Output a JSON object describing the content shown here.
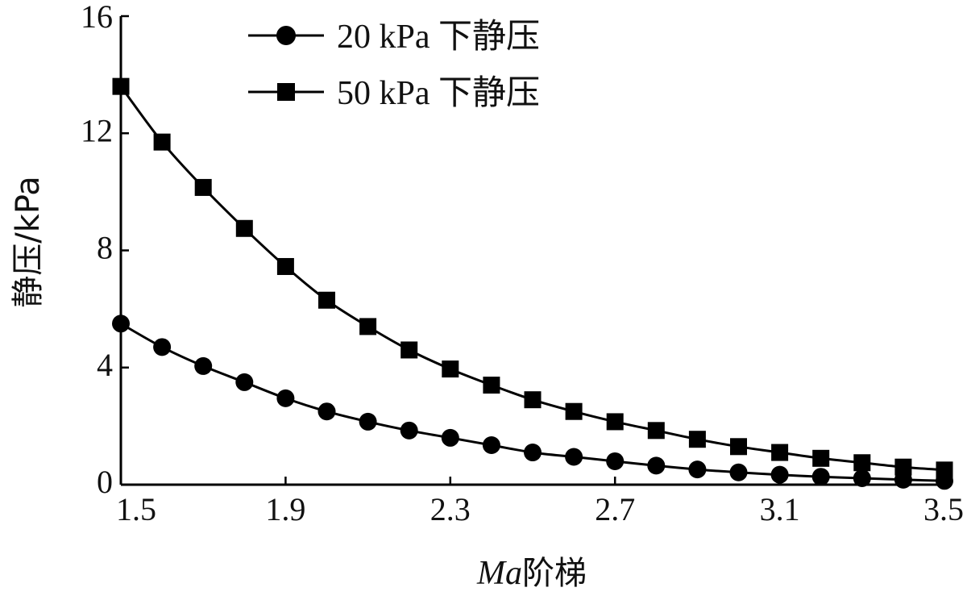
{
  "chart_data": {
    "type": "line",
    "title": "",
    "xlabel_italic": "Ma",
    "xlabel_rest": "阶梯",
    "ylabel": "静压/kPa",
    "xlim": [
      1.5,
      3.5
    ],
    "ylim": [
      0,
      16
    ],
    "xticks": [
      "1.5",
      "1.9",
      "2.3",
      "2.7",
      "3.1",
      "3.5"
    ],
    "yticks": [
      "0",
      "4",
      "8",
      "12",
      "16"
    ],
    "grid": false,
    "legend_position": "top-center",
    "x": [
      1.5,
      1.6,
      1.7,
      1.8,
      1.9,
      2.0,
      2.1,
      2.2,
      2.3,
      2.4,
      2.5,
      2.6,
      2.7,
      2.8,
      2.9,
      3.0,
      3.1,
      3.2,
      3.3,
      3.4,
      3.5
    ],
    "series": [
      {
        "name": "20 kPa 下静压",
        "marker": "circle",
        "color": "#000000",
        "values": [
          5.5,
          4.7,
          4.05,
          3.5,
          2.95,
          2.5,
          2.15,
          1.85,
          1.6,
          1.35,
          1.1,
          0.95,
          0.8,
          0.65,
          0.52,
          0.42,
          0.34,
          0.27,
          0.22,
          0.17,
          0.13
        ]
      },
      {
        "name": "50 kPa 下静压",
        "marker": "square",
        "color": "#000000",
        "values": [
          13.6,
          11.7,
          10.15,
          8.75,
          7.45,
          6.3,
          5.4,
          4.6,
          3.95,
          3.4,
          2.9,
          2.5,
          2.15,
          1.85,
          1.55,
          1.3,
          1.1,
          0.9,
          0.75,
          0.6,
          0.5
        ]
      }
    ]
  }
}
